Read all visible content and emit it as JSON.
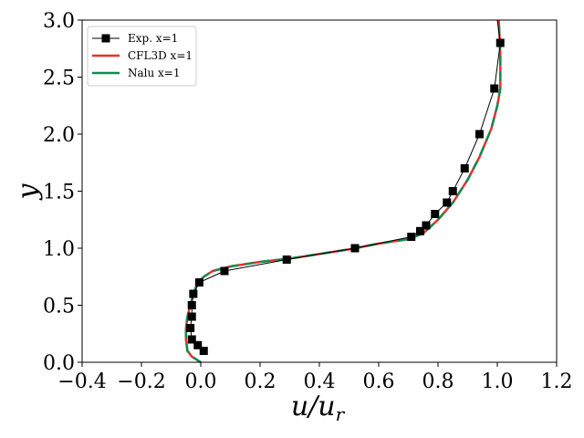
{
  "chart_data": {
    "type": "line",
    "title": "",
    "xlabel": "u/u_r",
    "xlabel_main": "u/u",
    "xlabel_sub": "r",
    "ylabel": "y",
    "xlim": [
      -0.4,
      1.2
    ],
    "ylim": [
      0.0,
      3.0
    ],
    "xticks": [
      -0.4,
      -0.2,
      0.0,
      0.2,
      0.4,
      0.6,
      0.8,
      1.0,
      1.2
    ],
    "yticks": [
      0.0,
      0.5,
      1.0,
      1.5,
      2.0,
      2.5,
      3.0
    ],
    "xtick_labels": [
      "−0.4",
      "−0.2",
      "0.0",
      "0.2",
      "0.4",
      "0.6",
      "0.8",
      "1.0",
      "1.2"
    ],
    "ytick_labels": [
      "0.0",
      "0.5",
      "1.0",
      "1.5",
      "2.0",
      "2.5",
      "3.0"
    ],
    "grid": false,
    "legend_position": "top-left",
    "series": [
      {
        "name": "Exp. x=1",
        "color": "#000000",
        "style": "line-square-markers",
        "points": [
          [
            0.01,
            0.1
          ],
          [
            -0.01,
            0.15
          ],
          [
            -0.03,
            0.2
          ],
          [
            -0.035,
            0.3
          ],
          [
            -0.03,
            0.4
          ],
          [
            -0.03,
            0.5
          ],
          [
            -0.025,
            0.6
          ],
          [
            -0.005,
            0.7
          ],
          [
            0.08,
            0.8
          ],
          [
            0.29,
            0.9
          ],
          [
            0.52,
            1.0
          ],
          [
            0.71,
            1.1
          ],
          [
            0.74,
            1.15
          ],
          [
            0.76,
            1.2
          ],
          [
            0.79,
            1.3
          ],
          [
            0.83,
            1.4
          ],
          [
            0.85,
            1.5
          ],
          [
            0.89,
            1.7
          ],
          [
            0.94,
            2.0
          ],
          [
            0.99,
            2.4
          ],
          [
            1.01,
            2.8
          ],
          [
            1.0,
            3.0
          ]
        ]
      },
      {
        "name": "CFL3D x=1",
        "color": "#e8302a",
        "style": "line",
        "points": [
          [
            0.0,
            0.0
          ],
          [
            -0.03,
            0.05
          ],
          [
            -0.045,
            0.1
          ],
          [
            -0.05,
            0.2
          ],
          [
            -0.05,
            0.3
          ],
          [
            -0.045,
            0.4
          ],
          [
            -0.035,
            0.5
          ],
          [
            -0.025,
            0.6
          ],
          [
            -0.01,
            0.7
          ],
          [
            0.01,
            0.75
          ],
          [
            0.04,
            0.8
          ],
          [
            0.1,
            0.84
          ],
          [
            0.2,
            0.88
          ],
          [
            0.3,
            0.91
          ],
          [
            0.4,
            0.95
          ],
          [
            0.5,
            0.99
          ],
          [
            0.6,
            1.04
          ],
          [
            0.7,
            1.08
          ],
          [
            0.75,
            1.13
          ],
          [
            0.8,
            1.25
          ],
          [
            0.85,
            1.4
          ],
          [
            0.9,
            1.6
          ],
          [
            0.94,
            1.8
          ],
          [
            0.98,
            2.05
          ],
          [
            1.0,
            2.25
          ],
          [
            1.01,
            2.4
          ],
          [
            1.01,
            2.7
          ],
          [
            1.005,
            3.0
          ]
        ]
      },
      {
        "name": "Nalu x=1",
        "color": "#118a52",
        "style": "dashed",
        "points": [
          [
            0.0,
            0.0
          ],
          [
            -0.03,
            0.05
          ],
          [
            -0.045,
            0.1
          ],
          [
            -0.05,
            0.2
          ],
          [
            -0.05,
            0.3
          ],
          [
            -0.045,
            0.4
          ],
          [
            -0.035,
            0.5
          ],
          [
            -0.025,
            0.6
          ],
          [
            -0.01,
            0.7
          ],
          [
            0.01,
            0.75
          ],
          [
            0.04,
            0.8
          ],
          [
            0.1,
            0.84
          ],
          [
            0.2,
            0.88
          ],
          [
            0.3,
            0.91
          ],
          [
            0.4,
            0.95
          ],
          [
            0.5,
            0.99
          ],
          [
            0.6,
            1.04
          ],
          [
            0.7,
            1.08
          ],
          [
            0.75,
            1.13
          ],
          [
            0.8,
            1.25
          ],
          [
            0.85,
            1.4
          ],
          [
            0.9,
            1.6
          ],
          [
            0.94,
            1.8
          ],
          [
            0.98,
            2.05
          ],
          [
            1.0,
            2.25
          ],
          [
            1.01,
            2.4
          ],
          [
            1.01,
            2.7
          ],
          [
            1.005,
            3.0
          ]
        ]
      }
    ]
  }
}
